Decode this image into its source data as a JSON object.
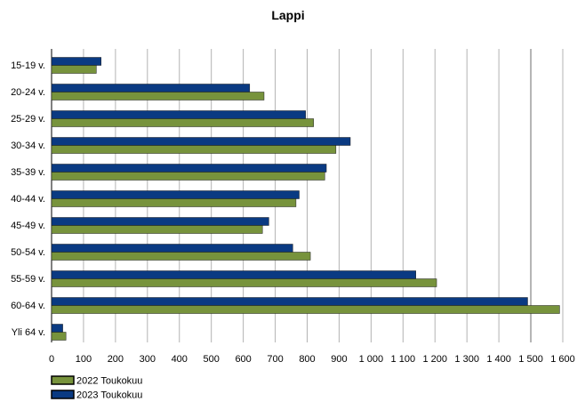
{
  "chart_data": {
    "type": "bar",
    "orientation": "horizontal",
    "title": "Lappi",
    "categories": [
      "15-19 v.",
      "20-24 v.",
      "25-29 v.",
      "30-34 v.",
      "35-39 v.",
      "40-44 v.",
      "45-49 v.",
      "50-54 v.",
      "55-59 v.",
      "60-64 v.",
      "Yli 64 v."
    ],
    "series": [
      {
        "name": "2023 Toukokuu",
        "color": "#0a3a82",
        "values": [
          155,
          620,
          795,
          935,
          860,
          775,
          680,
          755,
          1140,
          1490,
          35
        ]
      },
      {
        "name": "2022 Toukokuu",
        "color": "#77933c",
        "values": [
          140,
          665,
          820,
          890,
          855,
          765,
          660,
          810,
          1205,
          1590,
          45
        ]
      }
    ],
    "xlim": [
      0,
      1600
    ],
    "xticks": [
      0,
      100,
      200,
      300,
      400,
      500,
      600,
      700,
      800,
      900,
      1000,
      1100,
      1200,
      1300,
      1400,
      1500,
      1600
    ],
    "xtick_labels": [
      "0",
      "100",
      "200",
      "300",
      "400",
      "500",
      "600",
      "700",
      "800",
      "900",
      "1 000",
      "1 100",
      "1 200",
      "1 300",
      "1 400",
      "1 500",
      "1 600"
    ],
    "grid": true,
    "legend": {
      "placement": "bottom-left",
      "order": [
        "2022 Toukokuu",
        "2023 Toukokuu"
      ]
    }
  }
}
